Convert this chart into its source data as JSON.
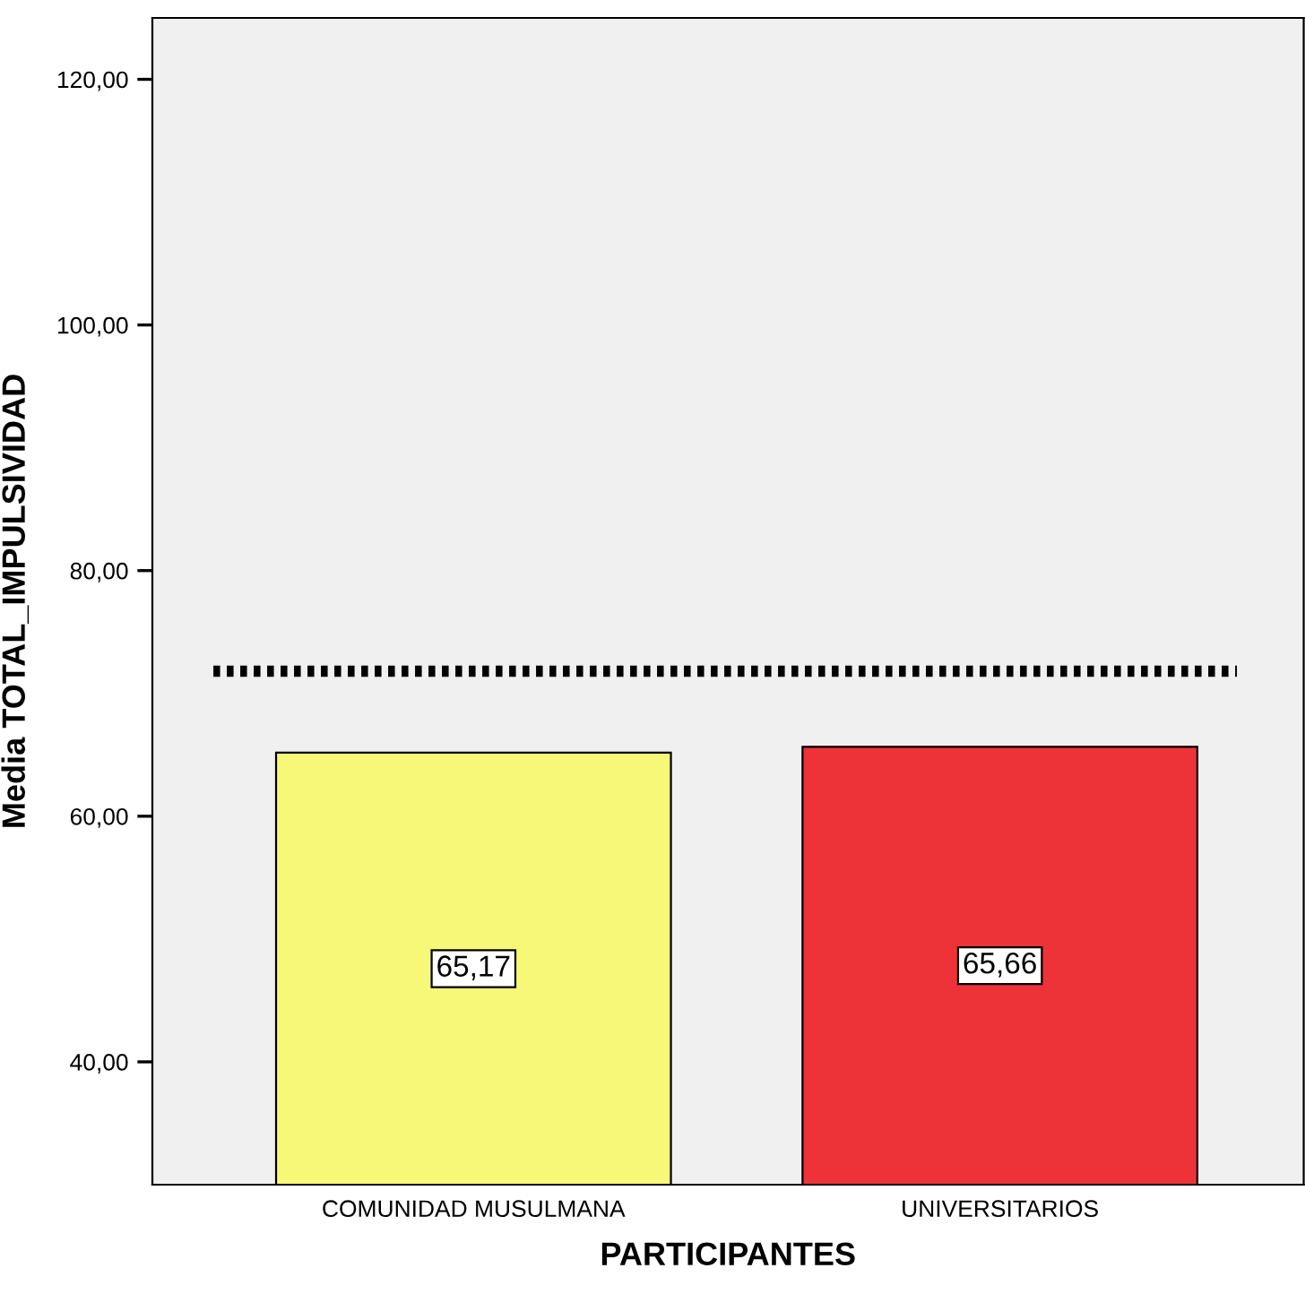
{
  "chart_data": {
    "type": "bar",
    "categories": [
      "COMUNIDAD MUSULMANA",
      "UNIVERSITARIOS"
    ],
    "values": [
      65.17,
      65.66
    ],
    "colors": [
      "#f8f878",
      "#ee3338"
    ],
    "value_labels": [
      "65,17",
      "65,66"
    ],
    "xlabel": "PARTICIPANTES",
    "ylabel": "Media TOTAL_IMPULSIVIDAD",
    "ylim": [
      30,
      125
    ],
    "yticks": [
      {
        "value": 40,
        "label": "40,00"
      },
      {
        "value": 60,
        "label": "60,00"
      },
      {
        "value": 80,
        "label": "80,00"
      },
      {
        "value": 100,
        "label": "100,00"
      },
      {
        "value": 120,
        "label": "120,00"
      }
    ],
    "ref_lines": [
      {
        "axis": "y",
        "value": 71.8,
        "label": null,
        "color": "#000000",
        "line_style": "dotted"
      }
    ],
    "grid": false,
    "legend": false
  }
}
